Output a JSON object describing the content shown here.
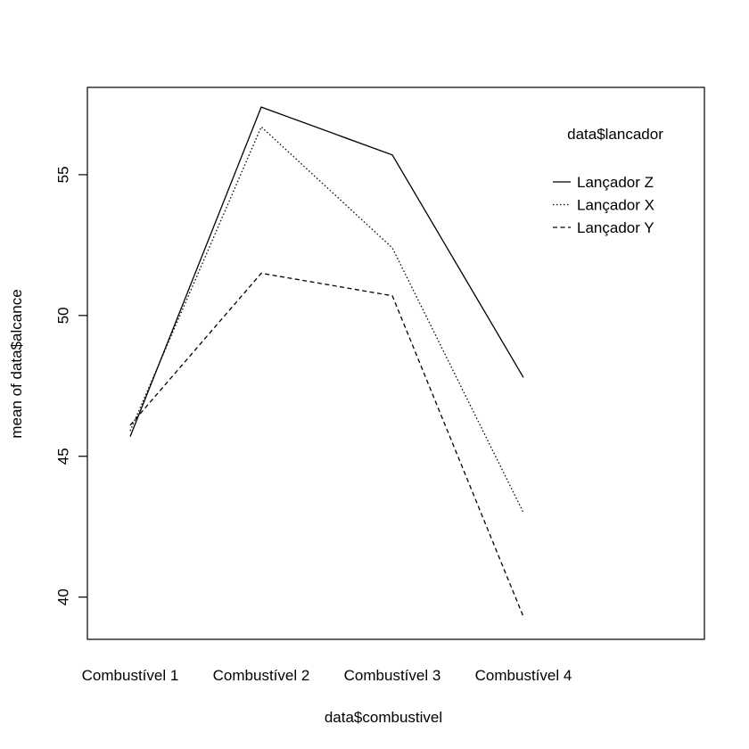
{
  "chart_data": {
    "type": "line",
    "xlabel": "data$combustivel",
    "ylabel": "mean of  data$alcance",
    "categories": [
      "Combustível 1",
      "Combustível 2",
      "Combustível 3",
      "Combustível 4"
    ],
    "yticks": [
      "40",
      "45",
      "50",
      "55"
    ],
    "ylim": [
      38.5,
      58.1
    ],
    "legend": {
      "title": "data$lancador",
      "placement": "top-right"
    },
    "series": [
      {
        "name": "Lançador Z",
        "line_style": "solid",
        "values": [
          45.7,
          57.4,
          55.7,
          47.8
        ]
      },
      {
        "name": "Lançador X",
        "line_style": "dotted",
        "values": [
          45.9,
          56.7,
          52.4,
          43.0
        ]
      },
      {
        "name": "Lançador Y",
        "line_style": "dashed",
        "values": [
          46.1,
          51.5,
          50.7,
          39.3
        ]
      }
    ]
  }
}
